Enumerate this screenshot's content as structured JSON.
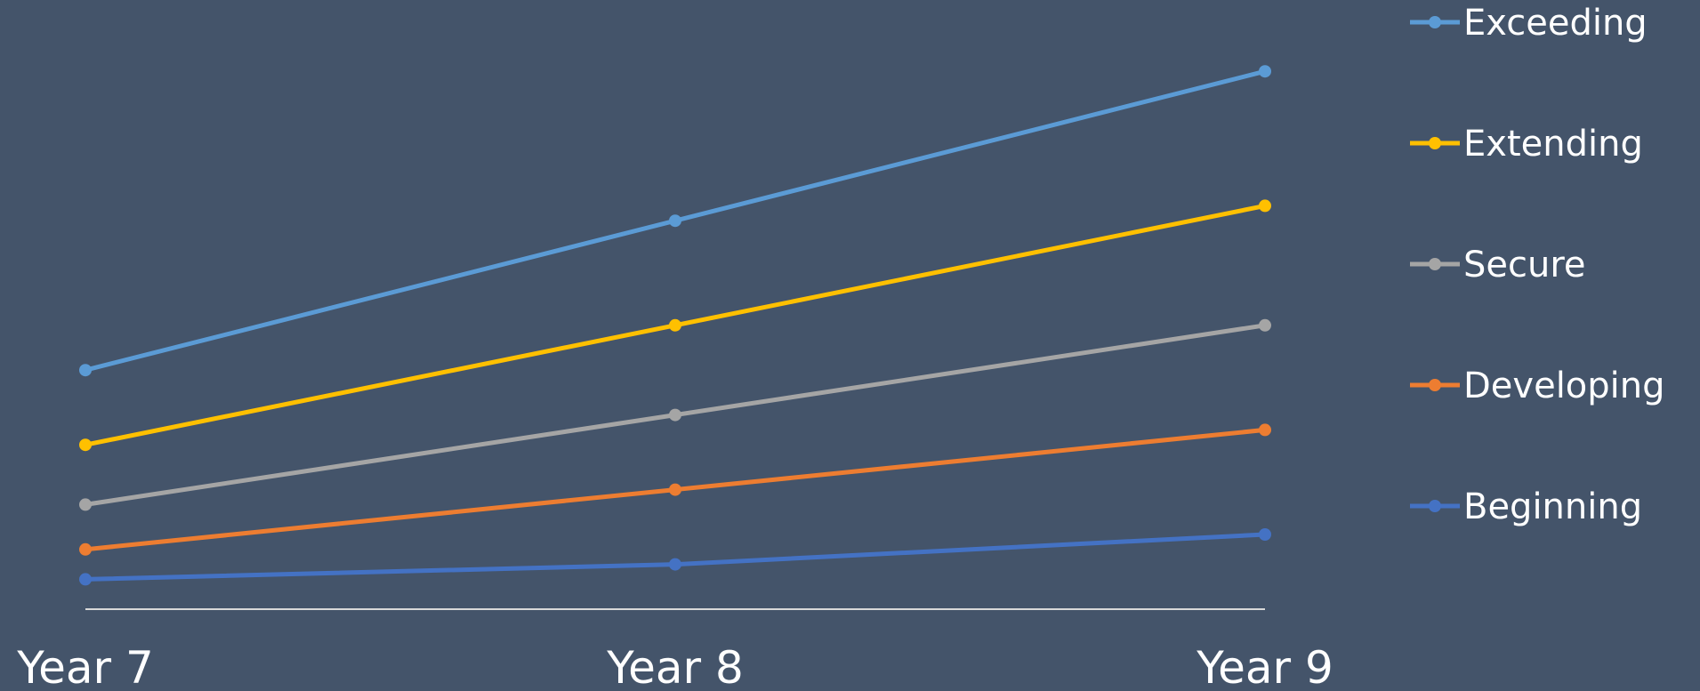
{
  "chart_data": {
    "type": "line",
    "title": "",
    "xlabel": "",
    "ylabel": "",
    "categories": [
      "Year 7",
      "Year 8",
      "Year 9"
    ],
    "ylim": [
      0,
      100
    ],
    "grid": false,
    "legend_position": "right",
    "series": [
      {
        "name": "Exceeding",
        "color": "#5B9BD5",
        "values": [
          40,
          65,
          90
        ]
      },
      {
        "name": "Extending",
        "color": "#FFC000",
        "values": [
          27.5,
          47.5,
          67.5
        ]
      },
      {
        "name": "Secure",
        "color": "#A5A5A5",
        "values": [
          17.5,
          32.5,
          47.5
        ]
      },
      {
        "name": "Developing",
        "color": "#ED7D31",
        "values": [
          10,
          20,
          30
        ]
      },
      {
        "name": "Beginning",
        "color": "#4472C4",
        "values": [
          5,
          7.5,
          12.5
        ]
      }
    ]
  }
}
